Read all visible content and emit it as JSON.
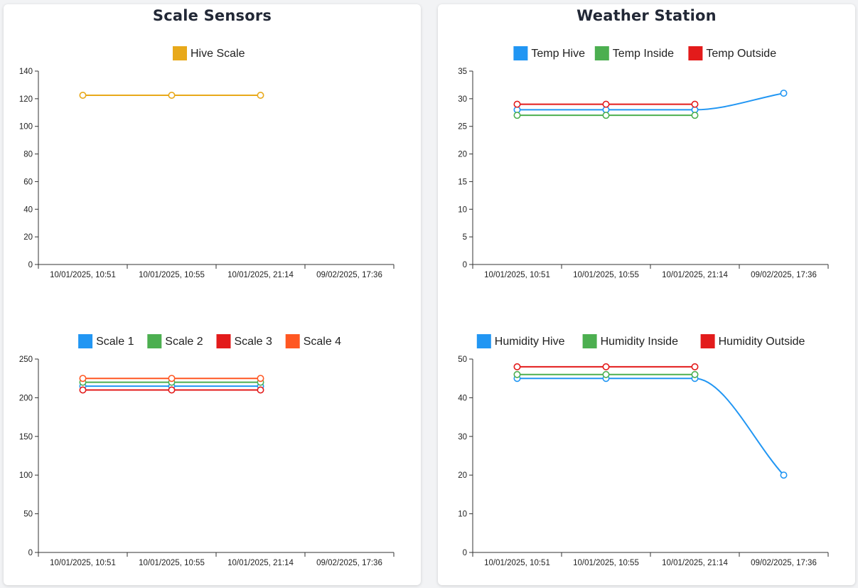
{
  "panels": [
    {
      "title": "Scale Sensors"
    },
    {
      "title": "Weather Station"
    }
  ],
  "chart_data": [
    {
      "id": "hive-scale",
      "type": "line",
      "categories": [
        "10/01/2025, 10:51",
        "10/01/2025, 10:55",
        "10/01/2025, 21:14",
        "09/02/2025, 17:36"
      ],
      "ylim": [
        0,
        140
      ],
      "yticks": [
        0,
        20,
        40,
        60,
        80,
        100,
        120,
        140
      ],
      "legend_position": "top",
      "series": [
        {
          "name": "Hive Scale",
          "color": "#e8a91a",
          "values": [
            122.5,
            122.5,
            122.5,
            null
          ]
        }
      ]
    },
    {
      "id": "scales",
      "type": "line",
      "categories": [
        "10/01/2025, 10:51",
        "10/01/2025, 10:55",
        "10/01/2025, 21:14",
        "09/02/2025, 17:36"
      ],
      "ylim": [
        0,
        250
      ],
      "yticks": [
        0,
        50,
        100,
        150,
        200,
        250
      ],
      "legend_position": "top",
      "series": [
        {
          "name": "Scale 1",
          "color": "#2196f3",
          "values": [
            215,
            215,
            215,
            null
          ]
        },
        {
          "name": "Scale 2",
          "color": "#4caf50",
          "values": [
            220,
            220,
            220,
            null
          ]
        },
        {
          "name": "Scale 3",
          "color": "#e31b1b",
          "values": [
            210,
            210,
            210,
            null
          ]
        },
        {
          "name": "Scale 4",
          "color": "#ff5722",
          "values": [
            225,
            225,
            225,
            null
          ]
        }
      ]
    },
    {
      "id": "temperature",
      "type": "line",
      "categories": [
        "10/01/2025, 10:51",
        "10/01/2025, 10:55",
        "10/01/2025, 21:14",
        "09/02/2025, 17:36"
      ],
      "ylim": [
        0,
        35
      ],
      "yticks": [
        0,
        5,
        10,
        15,
        20,
        25,
        30,
        35
      ],
      "legend_position": "top",
      "series": [
        {
          "name": "Temp Hive",
          "color": "#2196f3",
          "values": [
            28,
            28,
            28,
            31
          ]
        },
        {
          "name": "Temp Inside",
          "color": "#4caf50",
          "values": [
            27,
            27,
            27,
            null
          ]
        },
        {
          "name": "Temp Outside",
          "color": "#e31b1b",
          "values": [
            29,
            29,
            29,
            null
          ]
        }
      ]
    },
    {
      "id": "humidity",
      "type": "line",
      "categories": [
        "10/01/2025, 10:51",
        "10/01/2025, 10:55",
        "10/01/2025, 21:14",
        "09/02/2025, 17:36"
      ],
      "ylim": [
        0,
        50
      ],
      "yticks": [
        0,
        10,
        20,
        30,
        40,
        50
      ],
      "legend_position": "top",
      "series": [
        {
          "name": "Humidity Hive",
          "color": "#2196f3",
          "values": [
            45,
            45,
            45,
            20
          ]
        },
        {
          "name": "Humidity Inside",
          "color": "#4caf50",
          "values": [
            46,
            46,
            46,
            null
          ]
        },
        {
          "name": "Humidity Outside",
          "color": "#e31b1b",
          "values": [
            48,
            48,
            48,
            null
          ]
        }
      ]
    }
  ]
}
